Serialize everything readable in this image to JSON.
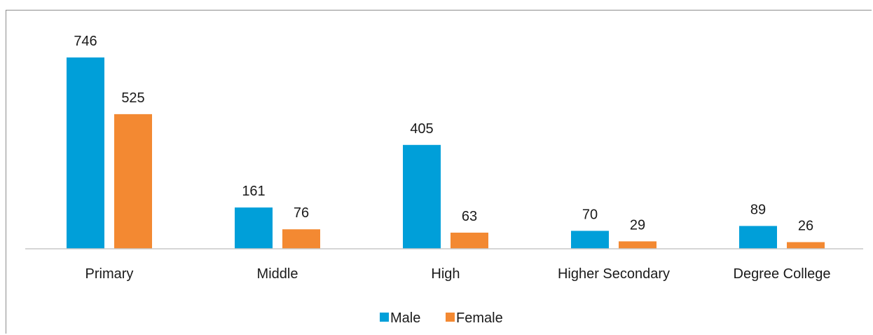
{
  "chart_data": {
    "type": "bar",
    "categories": [
      "Primary",
      "Middle",
      "High",
      "Higher Secondary",
      "Degree College"
    ],
    "series": [
      {
        "name": "Male",
        "color": "#009fd9",
        "values": [
          746,
          161,
          405,
          70,
          89
        ]
      },
      {
        "name": "Female",
        "color": "#f38932",
        "values": [
          525,
          76,
          63,
          29,
          26
        ]
      }
    ],
    "ylim": [
      0,
      746
    ],
    "grid": false,
    "legend": "bottom-center",
    "data_labels": true
  }
}
